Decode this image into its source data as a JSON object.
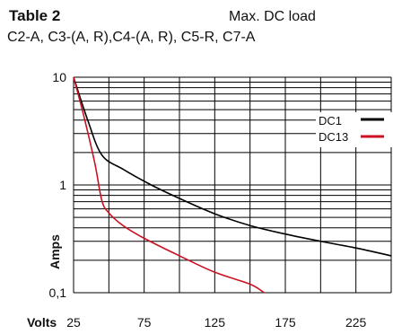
{
  "header": {
    "title": "Table 2",
    "right_label": "Max. DC load",
    "subtitle": "C2-A, C3-(A, R),C4-(A, R), C5-R, C7-A"
  },
  "chart_data": {
    "type": "line",
    "xlabel": "Volts",
    "ylabel": "Amps",
    "xlim": [
      25,
      250
    ],
    "ylim": [
      0.1,
      10
    ],
    "y_scale": "log",
    "grid": true,
    "legend_position": "top-right",
    "x_ticks": [
      {
        "value": 25,
        "label": "25"
      },
      {
        "value": 75,
        "label": "75"
      },
      {
        "value": 125,
        "label": "125"
      },
      {
        "value": 175,
        "label": "175"
      },
      {
        "value": 225,
        "label": "225"
      }
    ],
    "y_ticks": [
      {
        "value": 10,
        "label": "10"
      },
      {
        "value": 1,
        "label": "1"
      },
      {
        "value": 0.1,
        "label": "0,1"
      }
    ],
    "series": [
      {
        "name": "DC1",
        "color": "#000000",
        "x": [
          25,
          35,
          45,
          60,
          80,
          100,
          125,
          150,
          175,
          200,
          225,
          250
        ],
        "y": [
          10,
          4.0,
          1.9,
          1.4,
          1.0,
          0.75,
          0.54,
          0.42,
          0.35,
          0.3,
          0.26,
          0.22
        ]
      },
      {
        "name": "DC13",
        "color": "#cc1122",
        "x": [
          25,
          32,
          40,
          45,
          50,
          60,
          75,
          100,
          125,
          150,
          160
        ],
        "y": [
          10,
          4.5,
          1.6,
          0.72,
          0.55,
          0.42,
          0.32,
          0.22,
          0.155,
          0.12,
          0.1
        ]
      }
    ]
  }
}
